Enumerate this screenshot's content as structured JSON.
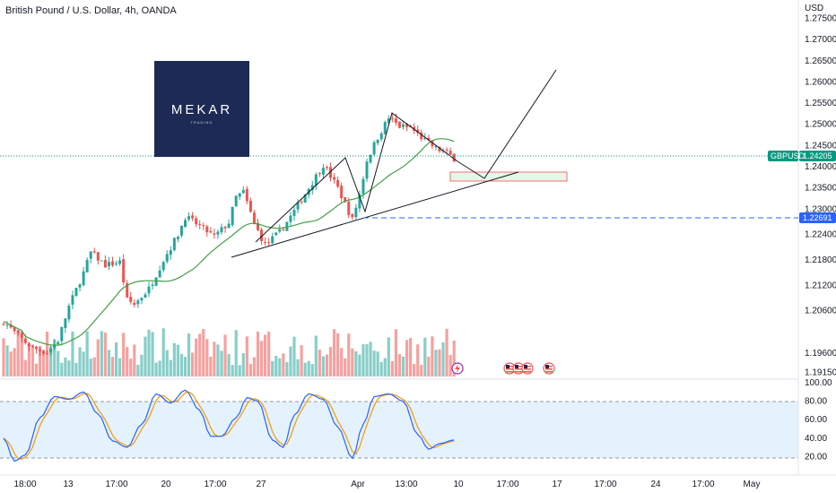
{
  "header": {
    "title": "British Pound / U.S. Dollar, 4h, OANDA"
  },
  "logo": {
    "main": "MEKAR",
    "sub": "TRADING"
  },
  "price_axis": {
    "currency": "USD",
    "ticks": [
      "1.27500",
      "1.27000",
      "1.26500",
      "1.26000",
      "1.25500",
      "1.25000",
      "1.24500",
      "1.24000",
      "1.23500",
      "1.23000",
      "1.22400",
      "1.21800",
      "1.21200",
      "1.20600",
      "1.19600",
      "1.19150"
    ]
  },
  "symbol_tag": {
    "label": "GBPUSD",
    "price": "1.24205"
  },
  "level_tag": {
    "price": "1.22691"
  },
  "oscillator_axis": {
    "ticks": [
      "100.00",
      "80.00",
      "60.00",
      "40.00",
      "20.00"
    ]
  },
  "time_axis": {
    "ticks": [
      "18:00",
      "13",
      "17:00",
      "20",
      "17:00",
      "27",
      "Apr",
      "13:00",
      "10",
      "17:00",
      "17",
      "17:00",
      "24",
      "17:00",
      "May"
    ]
  },
  "colors": {
    "up": "#26a69a",
    "down": "#ef5350",
    "ma": "#43a047",
    "stoch_k": "#2962ff",
    "stoch_d": "#ff9800",
    "price_line": "#089981",
    "level_line": "#2962ff",
    "osc_band": "#e3f2fd"
  },
  "icons": [
    "lightning-icon",
    "us-flag-icon",
    "us-flag-icon",
    "us-flag-icon"
  ],
  "chart_data": {
    "type": "candlestick",
    "instrument": "British Pound / U.S. Dollar",
    "interval": "4h",
    "source": "OANDA",
    "last_price": 1.24205,
    "price_range": [
      1.1905,
      1.2785
    ],
    "marked_level": 1.22691,
    "close_path": [
      {
        "bar": 0,
        "close": 1.2035
      },
      {
        "bar": 4,
        "close": 1.2
      },
      {
        "bar": 8,
        "close": 1.1972
      },
      {
        "bar": 12,
        "close": 1.1962
      },
      {
        "bar": 15,
        "close": 1.199
      },
      {
        "bar": 18,
        "close": 1.207
      },
      {
        "bar": 22,
        "close": 1.215
      },
      {
        "bar": 24,
        "close": 1.2198
      },
      {
        "bar": 28,
        "close": 1.2168
      },
      {
        "bar": 32,
        "close": 1.2175
      },
      {
        "bar": 34,
        "close": 1.2085
      },
      {
        "bar": 36,
        "close": 1.2075
      },
      {
        "bar": 40,
        "close": 1.2112
      },
      {
        "bar": 44,
        "close": 1.218
      },
      {
        "bar": 48,
        "close": 1.224
      },
      {
        "bar": 50,
        "close": 1.2282
      },
      {
        "bar": 54,
        "close": 1.226
      },
      {
        "bar": 58,
        "close": 1.2235
      },
      {
        "bar": 62,
        "close": 1.2268
      },
      {
        "bar": 64,
        "close": 1.2328
      },
      {
        "bar": 66,
        "close": 1.234
      },
      {
        "bar": 69,
        "close": 1.2265
      },
      {
        "bar": 72,
        "close": 1.2215
      },
      {
        "bar": 76,
        "close": 1.2245
      },
      {
        "bar": 80,
        "close": 1.2295
      },
      {
        "bar": 84,
        "close": 1.235
      },
      {
        "bar": 88,
        "close": 1.2405
      },
      {
        "bar": 92,
        "close": 1.235
      },
      {
        "bar": 96,
        "close": 1.2275
      },
      {
        "bar": 98,
        "close": 1.2335
      },
      {
        "bar": 100,
        "close": 1.2415
      },
      {
        "bar": 103,
        "close": 1.247
      },
      {
        "bar": 106,
        "close": 1.2515
      },
      {
        "bar": 109,
        "close": 1.2495
      },
      {
        "bar": 112,
        "close": 1.2492
      },
      {
        "bar": 116,
        "close": 1.2462
      },
      {
        "bar": 119,
        "close": 1.2443
      },
      {
        "bar": 122,
        "close": 1.2432
      },
      {
        "bar": 124,
        "close": 1.242
      }
    ],
    "stochastic": {
      "levels": [
        80,
        20
      ],
      "range": [
        0,
        100
      ],
      "k_path": [
        {
          "bar": 0,
          "value": 40
        },
        {
          "bar": 3,
          "value": 15
        },
        {
          "bar": 6,
          "value": 22
        },
        {
          "bar": 10,
          "value": 62
        },
        {
          "bar": 14,
          "value": 85
        },
        {
          "bar": 18,
          "value": 82
        },
        {
          "bar": 22,
          "value": 90
        },
        {
          "bar": 26,
          "value": 66
        },
        {
          "bar": 30,
          "value": 37
        },
        {
          "bar": 34,
          "value": 30
        },
        {
          "bar": 38,
          "value": 55
        },
        {
          "bar": 42,
          "value": 88
        },
        {
          "bar": 46,
          "value": 78
        },
        {
          "bar": 50,
          "value": 92
        },
        {
          "bar": 54,
          "value": 70
        },
        {
          "bar": 57,
          "value": 42
        },
        {
          "bar": 60,
          "value": 42
        },
        {
          "bar": 64,
          "value": 62
        },
        {
          "bar": 67,
          "value": 84
        },
        {
          "bar": 70,
          "value": 80
        },
        {
          "bar": 74,
          "value": 38
        },
        {
          "bar": 77,
          "value": 30
        },
        {
          "bar": 80,
          "value": 65
        },
        {
          "bar": 84,
          "value": 88
        },
        {
          "bar": 88,
          "value": 82
        },
        {
          "bar": 92,
          "value": 52
        },
        {
          "bar": 96,
          "value": 18
        },
        {
          "bar": 99,
          "value": 55
        },
        {
          "bar": 102,
          "value": 85
        },
        {
          "bar": 106,
          "value": 88
        },
        {
          "bar": 110,
          "value": 80
        },
        {
          "bar": 114,
          "value": 44
        },
        {
          "bar": 117,
          "value": 28
        },
        {
          "bar": 120,
          "value": 34
        },
        {
          "bar": 124,
          "value": 38
        }
      ]
    }
  }
}
